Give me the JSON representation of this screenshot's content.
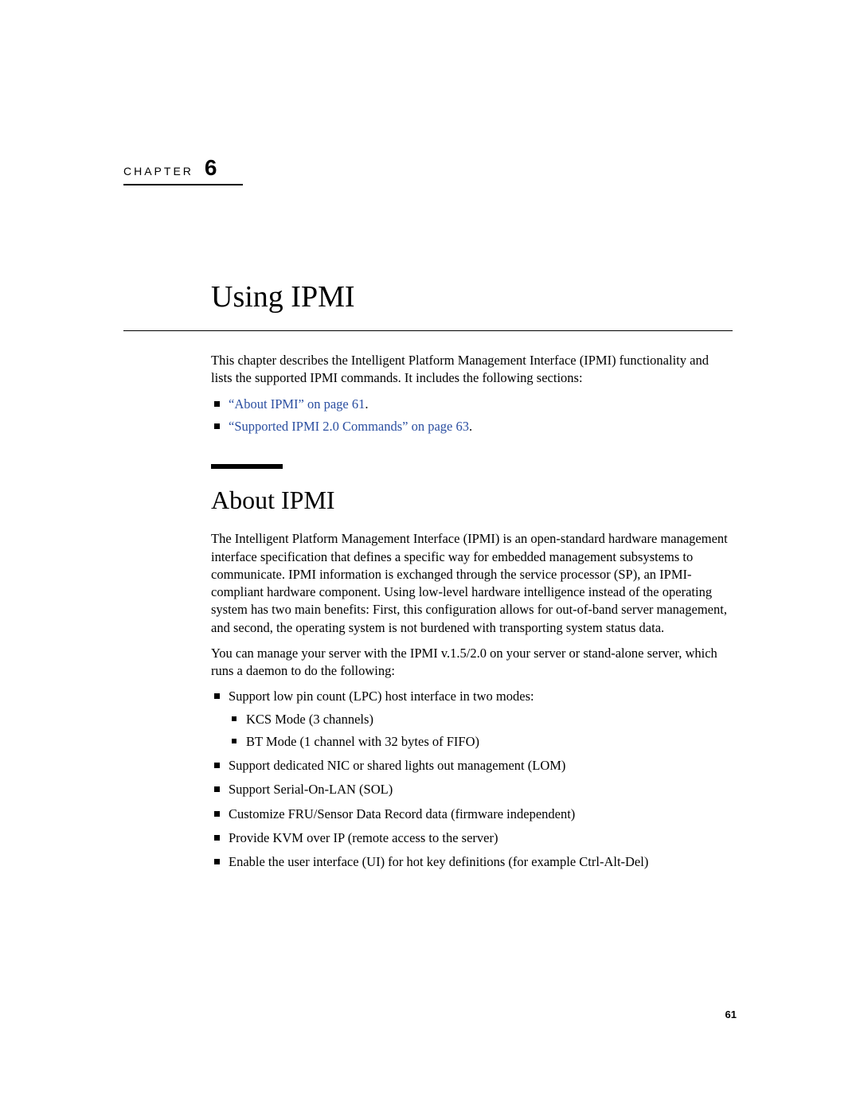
{
  "chapter": {
    "label": "CHAPTER",
    "number": "6",
    "title": "Using IPMI"
  },
  "intro": "This chapter describes the Intelligent Platform Management Interface (IPMI) functionality and lists the supported IPMI commands. It includes the following sections:",
  "xrefs": [
    {
      "text": "“About IPMI” on page 61"
    },
    {
      "text": "“Supported IPMI 2.0 Commands” on page 63"
    }
  ],
  "section": {
    "title": "About IPMI",
    "p1": "The Intelligent Platform Management Interface (IPMI) is an open-standard hardware management interface specification that defines a specific way for embedded management subsystems to communicate. IPMI information is exchanged through the service processor (SP), an IPMI-compliant hardware component. Using low-level hardware intelligence instead of the operating system has two main benefits: First, this configuration allows for out-of-band server management, and second, the operating system is not burdened with transporting system status data.",
    "p2": "You can manage your server with the IPMI v.1.5/2.0 on your server or stand-alone server, which runs a daemon to do the following:"
  },
  "features": {
    "f0": "Support low pin count (LPC) host interface in two modes:",
    "f0a": "KCS Mode (3 channels)",
    "f0b": "BT Mode (1 channel with 32 bytes of FIFO)",
    "f1": "Support dedicated NIC or shared lights out management (LOM)",
    "f2": "Support Serial-On-LAN (SOL)",
    "f3": "Customize FRU/Sensor Data Record data (firmware independent)",
    "f4": "Provide KVM over IP (remote access to the server)",
    "f5": "Enable the user interface (UI) for hot key definitions (for example Ctrl-Alt-Del)"
  },
  "footer": {
    "page_number": "61"
  },
  "colors": {
    "link": "#2a4ea0",
    "text": "#000000",
    "background": "#ffffff"
  }
}
